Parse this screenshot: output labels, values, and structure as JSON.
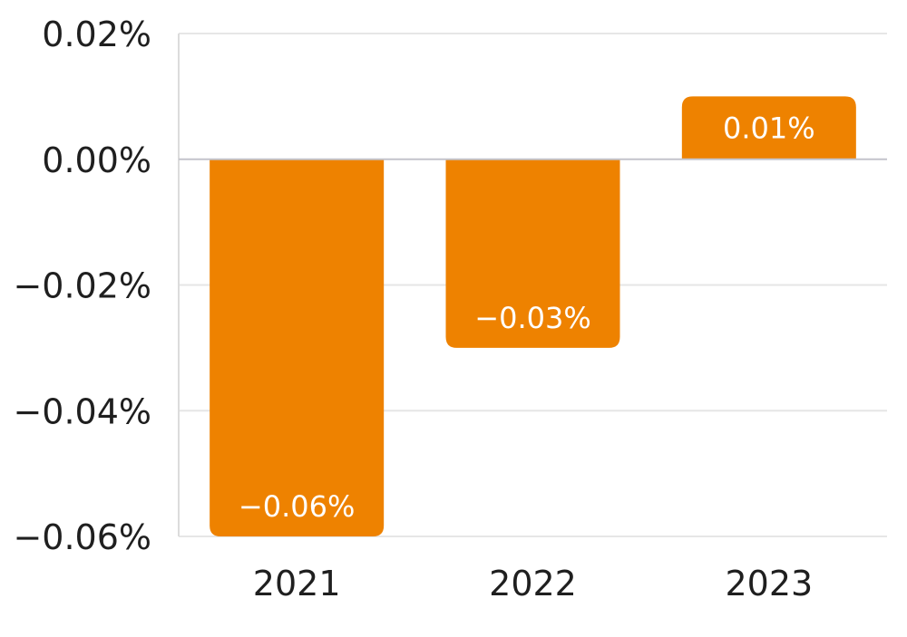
{
  "chart_data": {
    "type": "bar",
    "categories": [
      "2021",
      "2022",
      "2023"
    ],
    "values": [
      -0.06,
      -0.03,
      0.01
    ],
    "value_labels": [
      "−0.06%",
      "−0.03%",
      "0.01%"
    ],
    "ylim": [
      -0.06,
      0.02
    ],
    "yticks": [
      0.02,
      0.0,
      -0.02,
      -0.04,
      -0.06
    ],
    "ytick_labels": [
      "0.02%",
      "0.00%",
      "−0.02%",
      "−0.04%",
      "−0.06%"
    ],
    "grid": true,
    "bar_color": "#EE8200",
    "gridline_color": "#E6E6E6",
    "zero_line_color": "#C4C4CC",
    "axis_line_color": "#DCDCDC",
    "text_color": "#1F1F1F",
    "label_color": "#FFFFFF"
  }
}
